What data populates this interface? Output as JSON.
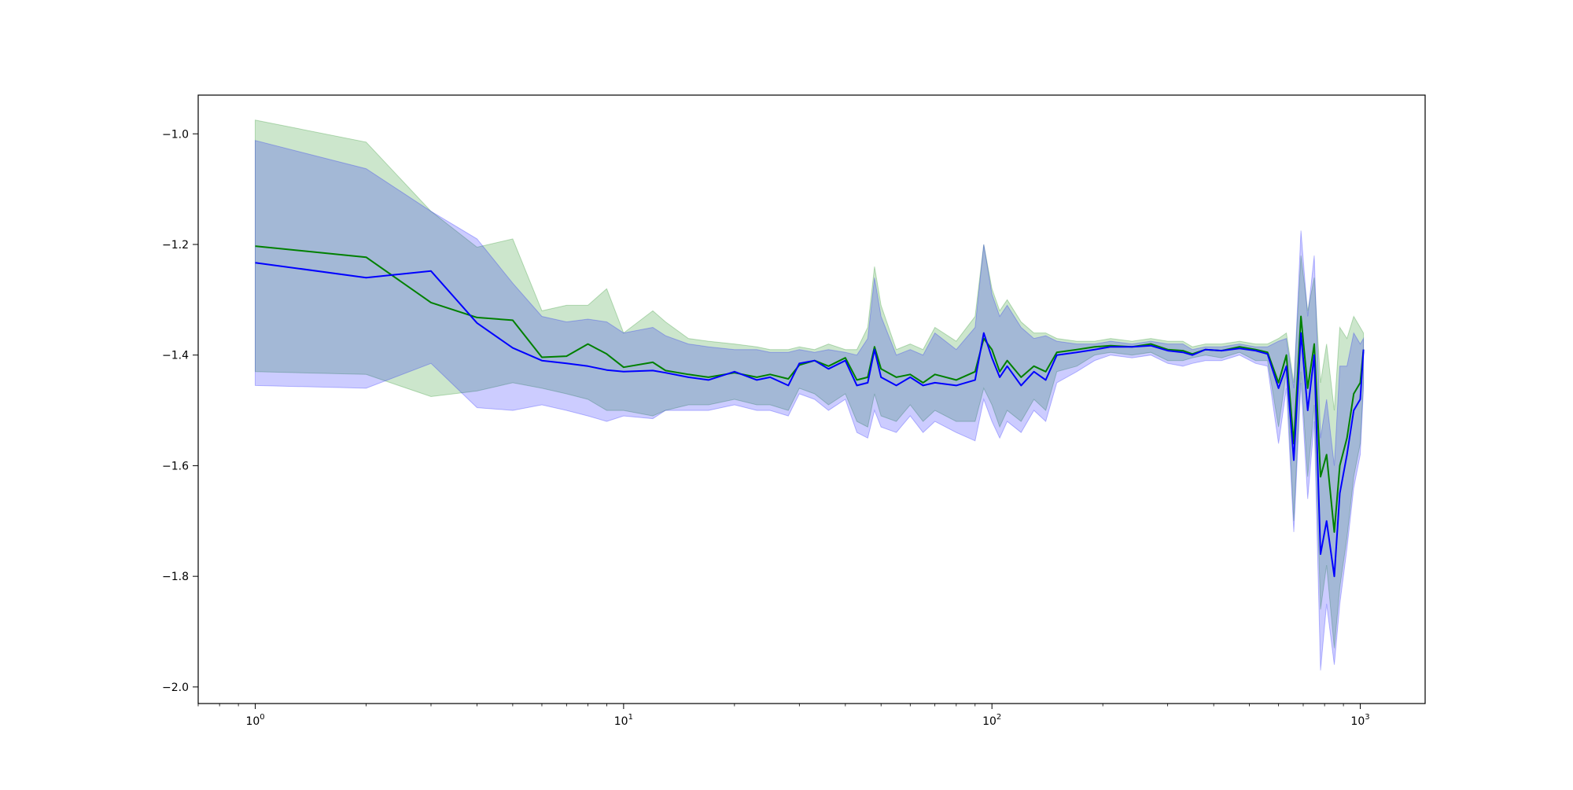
{
  "chart_data": {
    "type": "line",
    "title": "",
    "xlabel": "",
    "ylabel": "",
    "x_scale": "log",
    "xlim": [
      0.7,
      1500
    ],
    "ylim": [
      -2.03,
      -0.93
    ],
    "grid": false,
    "legend": "none",
    "x_ticks": [
      {
        "value": 1,
        "base": "10",
        "exp": "0"
      },
      {
        "value": 10,
        "base": "10",
        "exp": "1"
      },
      {
        "value": 100,
        "base": "10",
        "exp": "2"
      },
      {
        "value": 1000,
        "base": "10",
        "exp": "3"
      }
    ],
    "y_ticks": [
      {
        "value": -1.0,
        "label": "−1.0"
      },
      {
        "value": -1.2,
        "label": "−1.2"
      },
      {
        "value": -1.4,
        "label": "−1.4"
      },
      {
        "value": -1.6,
        "label": "−1.6"
      },
      {
        "value": -1.8,
        "label": "−1.8"
      },
      {
        "value": -2.0,
        "label": "−2.0"
      }
    ],
    "series": [
      {
        "color": "#008000",
        "band_color": "#008000",
        "band_opacity": 0.2,
        "x": [
          1,
          2,
          3,
          4,
          5,
          6,
          7,
          8,
          9,
          10,
          12,
          13,
          15,
          17,
          20,
          23,
          25,
          28,
          30,
          33,
          36,
          40,
          43,
          46,
          48,
          50,
          55,
          60,
          65,
          70,
          80,
          90,
          95,
          100,
          105,
          110,
          120,
          130,
          140,
          150,
          170,
          190,
          210,
          240,
          270,
          300,
          330,
          350,
          380,
          420,
          470,
          520,
          560,
          600,
          630,
          660,
          690,
          720,
          750,
          780,
          810,
          850,
          880,
          920,
          960,
          1000,
          1020
        ],
        "y": [
          -1.203,
          -1.223,
          -1.305,
          -1.332,
          -1.337,
          -1.404,
          -1.402,
          -1.38,
          -1.398,
          -1.422,
          -1.413,
          -1.428,
          -1.435,
          -1.44,
          -1.432,
          -1.44,
          -1.435,
          -1.443,
          -1.418,
          -1.41,
          -1.42,
          -1.405,
          -1.445,
          -1.44,
          -1.385,
          -1.425,
          -1.44,
          -1.435,
          -1.45,
          -1.435,
          -1.445,
          -1.43,
          -1.37,
          -1.39,
          -1.43,
          -1.41,
          -1.44,
          -1.42,
          -1.43,
          -1.395,
          -1.39,
          -1.385,
          -1.383,
          -1.385,
          -1.38,
          -1.39,
          -1.392,
          -1.398,
          -1.39,
          -1.392,
          -1.385,
          -1.39,
          -1.395,
          -1.45,
          -1.4,
          -1.56,
          -1.33,
          -1.46,
          -1.38,
          -1.62,
          -1.58,
          -1.72,
          -1.6,
          -1.55,
          -1.47,
          -1.45,
          -1.39
        ],
        "lower": [
          -1.43,
          -1.435,
          -1.475,
          -1.465,
          -1.45,
          -1.46,
          -1.47,
          -1.48,
          -1.5,
          -1.5,
          -1.51,
          -1.5,
          -1.49,
          -1.49,
          -1.48,
          -1.49,
          -1.49,
          -1.5,
          -1.46,
          -1.47,
          -1.49,
          -1.47,
          -1.52,
          -1.53,
          -1.47,
          -1.51,
          -1.52,
          -1.49,
          -1.52,
          -1.5,
          -1.52,
          -1.52,
          -1.46,
          -1.49,
          -1.53,
          -1.5,
          -1.52,
          -1.48,
          -1.5,
          -1.43,
          -1.42,
          -1.4,
          -1.395,
          -1.4,
          -1.395,
          -1.41,
          -1.41,
          -1.405,
          -1.4,
          -1.405,
          -1.395,
          -1.41,
          -1.41,
          -1.53,
          -1.43,
          -1.7,
          -1.43,
          -1.62,
          -1.49,
          -1.86,
          -1.78,
          -1.93,
          -1.82,
          -1.73,
          -1.62,
          -1.56,
          -1.45
        ],
        "upper": [
          -0.975,
          -1.015,
          -1.14,
          -1.205,
          -1.19,
          -1.32,
          -1.31,
          -1.31,
          -1.28,
          -1.36,
          -1.32,
          -1.34,
          -1.37,
          -1.375,
          -1.38,
          -1.385,
          -1.39,
          -1.39,
          -1.385,
          -1.39,
          -1.38,
          -1.39,
          -1.39,
          -1.35,
          -1.24,
          -1.31,
          -1.39,
          -1.38,
          -1.39,
          -1.35,
          -1.375,
          -1.33,
          -1.2,
          -1.28,
          -1.32,
          -1.3,
          -1.34,
          -1.36,
          -1.36,
          -1.37,
          -1.375,
          -1.375,
          -1.37,
          -1.375,
          -1.37,
          -1.375,
          -1.375,
          -1.385,
          -1.38,
          -1.38,
          -1.375,
          -1.38,
          -1.38,
          -1.37,
          -1.36,
          -1.45,
          -1.22,
          -1.32,
          -1.26,
          -1.45,
          -1.38,
          -1.5,
          -1.35,
          -1.37,
          -1.33,
          -1.35,
          -1.36
        ]
      },
      {
        "color": "#0000ff",
        "band_color": "#0000ff",
        "band_opacity": 0.2,
        "x": [
          1,
          2,
          3,
          4,
          5,
          6,
          7,
          8,
          9,
          10,
          12,
          13,
          15,
          17,
          20,
          23,
          25,
          28,
          30,
          33,
          36,
          40,
          43,
          46,
          48,
          50,
          55,
          60,
          65,
          70,
          80,
          90,
          95,
          100,
          105,
          110,
          120,
          130,
          140,
          150,
          170,
          190,
          210,
          240,
          270,
          300,
          330,
          350,
          380,
          420,
          470,
          520,
          560,
          600,
          630,
          660,
          690,
          720,
          750,
          780,
          810,
          850,
          880,
          920,
          960,
          1000,
          1020
        ],
        "y": [
          -1.233,
          -1.26,
          -1.248,
          -1.342,
          -1.387,
          -1.41,
          -1.415,
          -1.42,
          -1.427,
          -1.43,
          -1.428,
          -1.432,
          -1.44,
          -1.445,
          -1.43,
          -1.445,
          -1.44,
          -1.455,
          -1.415,
          -1.41,
          -1.425,
          -1.41,
          -1.455,
          -1.45,
          -1.39,
          -1.44,
          -1.455,
          -1.44,
          -1.455,
          -1.45,
          -1.455,
          -1.445,
          -1.36,
          -1.405,
          -1.44,
          -1.42,
          -1.455,
          -1.43,
          -1.445,
          -1.4,
          -1.395,
          -1.39,
          -1.385,
          -1.385,
          -1.383,
          -1.392,
          -1.395,
          -1.4,
          -1.39,
          -1.392,
          -1.388,
          -1.392,
          -1.398,
          -1.46,
          -1.42,
          -1.59,
          -1.36,
          -1.5,
          -1.4,
          -1.76,
          -1.7,
          -1.8,
          -1.65,
          -1.58,
          -1.5,
          -1.48,
          -1.39
        ],
        "lower": [
          -1.455,
          -1.46,
          -1.415,
          -1.495,
          -1.5,
          -1.49,
          -1.5,
          -1.51,
          -1.52,
          -1.51,
          -1.515,
          -1.5,
          -1.5,
          -1.5,
          -1.49,
          -1.5,
          -1.5,
          -1.51,
          -1.47,
          -1.48,
          -1.5,
          -1.48,
          -1.54,
          -1.55,
          -1.5,
          -1.53,
          -1.54,
          -1.51,
          -1.54,
          -1.52,
          -1.54,
          -1.555,
          -1.48,
          -1.52,
          -1.55,
          -1.52,
          -1.54,
          -1.5,
          -1.52,
          -1.45,
          -1.43,
          -1.41,
          -1.4,
          -1.405,
          -1.4,
          -1.415,
          -1.42,
          -1.415,
          -1.41,
          -1.41,
          -1.4,
          -1.415,
          -1.42,
          -1.56,
          -1.46,
          -1.72,
          -1.45,
          -1.66,
          -1.52,
          -1.97,
          -1.85,
          -1.96,
          -1.85,
          -1.75,
          -1.64,
          -1.58,
          -1.46
        ],
        "upper": [
          -1.012,
          -1.063,
          -1.14,
          -1.19,
          -1.27,
          -1.33,
          -1.34,
          -1.335,
          -1.34,
          -1.36,
          -1.35,
          -1.365,
          -1.38,
          -1.385,
          -1.39,
          -1.39,
          -1.395,
          -1.395,
          -1.39,
          -1.395,
          -1.39,
          -1.395,
          -1.4,
          -1.37,
          -1.26,
          -1.33,
          -1.4,
          -1.39,
          -1.4,
          -1.36,
          -1.39,
          -1.35,
          -1.2,
          -1.29,
          -1.33,
          -1.31,
          -1.35,
          -1.37,
          -1.365,
          -1.375,
          -1.38,
          -1.38,
          -1.375,
          -1.38,
          -1.375,
          -1.38,
          -1.38,
          -1.39,
          -1.385,
          -1.385,
          -1.38,
          -1.385,
          -1.385,
          -1.375,
          -1.37,
          -1.46,
          -1.175,
          -1.33,
          -1.22,
          -1.55,
          -1.48,
          -1.6,
          -1.42,
          -1.42,
          -1.36,
          -1.38,
          -1.37
        ]
      }
    ]
  }
}
